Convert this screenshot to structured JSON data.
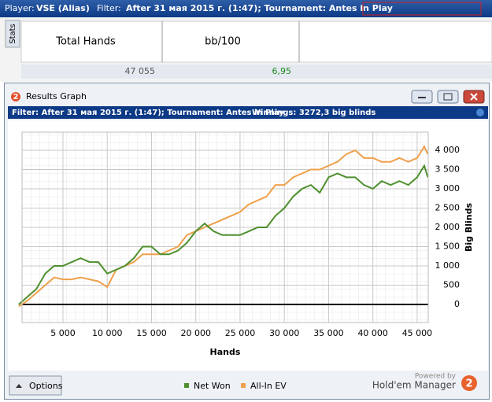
{
  "header": {
    "player_label": "Player:",
    "player": "VSE (Alias)",
    "filter_label": "Filter:",
    "filter": "After 31 мая 2015 г. (1:47); Tournament: Antes in Play"
  },
  "stats": {
    "tab": "Stats",
    "columns": [
      "Total Hands",
      "bb/100"
    ],
    "row": [
      "47 055",
      "6,95"
    ]
  },
  "window": {
    "title": "Results Graph",
    "filter": "Filter: After 31 мая 2015 г. (1:47); Tournament: Antes in Play",
    "winnings": "Winnings: 3272,3 big blinds",
    "options": "Options",
    "powered_by": "Powered by",
    "brand": "Hold'em Manager",
    "logo": "2"
  },
  "chart_data": {
    "type": "line",
    "xlabel": "Hands",
    "ylabel": "Big Blinds",
    "x": [
      0,
      1000,
      2000,
      3000,
      4000,
      5000,
      6000,
      7000,
      8000,
      9000,
      10000,
      11000,
      12000,
      13000,
      14000,
      15000,
      16000,
      17000,
      18000,
      19000,
      20000,
      21000,
      22000,
      23000,
      24000,
      25000,
      26000,
      27000,
      28000,
      29000,
      30000,
      31000,
      32000,
      33000,
      34000,
      35000,
      36000,
      37000,
      38000,
      39000,
      40000,
      41000,
      42000,
      43000,
      44000,
      45000,
      45800,
      46200
    ],
    "series": [
      {
        "name": "Net Won",
        "color": "#4e8f2c",
        "values": [
          0,
          200,
          400,
          800,
          1000,
          1000,
          1100,
          1200,
          1100,
          1100,
          800,
          900,
          1000,
          1200,
          1500,
          1500,
          1300,
          1300,
          1400,
          1600,
          1900,
          2100,
          1900,
          1800,
          1800,
          1800,
          1900,
          2000,
          2000,
          2300,
          2500,
          2800,
          3000,
          3100,
          2900,
          3300,
          3400,
          3300,
          3300,
          3100,
          3000,
          3200,
          3100,
          3200,
          3100,
          3300,
          3600,
          3300
        ]
      },
      {
        "name": "All-In EV",
        "color": "#f0a04b",
        "values": [
          -50,
          100,
          300,
          500,
          700,
          650,
          650,
          700,
          650,
          600,
          450,
          900,
          1000,
          1100,
          1300,
          1300,
          1300,
          1400,
          1500,
          1800,
          1900,
          2000,
          2100,
          2200,
          2300,
          2400,
          2600,
          2700,
          2800,
          3100,
          3100,
          3300,
          3400,
          3500,
          3500,
          3600,
          3700,
          3900,
          4000,
          3800,
          3800,
          3700,
          3700,
          3800,
          3700,
          3800,
          4100,
          3900
        ]
      }
    ],
    "xlim": [
      380,
      46250
    ],
    "ylim": [
      -470,
      4470
    ],
    "xticks": [
      {
        "value": 5000,
        "label": "5 000"
      },
      {
        "value": 10000,
        "label": "10 000"
      },
      {
        "value": 15000,
        "label": "15 000"
      },
      {
        "value": 20000,
        "label": "20 000"
      },
      {
        "value": 25000,
        "label": "25 000"
      },
      {
        "value": 30000,
        "label": "30 000"
      },
      {
        "value": 35000,
        "label": "35 000"
      },
      {
        "value": 40000,
        "label": "40 000"
      },
      {
        "value": 45000,
        "label": "45 000"
      }
    ],
    "yticks": [
      0,
      500,
      {
        "value": 1000,
        "label": "1 000"
      },
      {
        "value": 1500,
        "label": "1 500"
      },
      {
        "value": 2000,
        "label": "2 000"
      },
      {
        "value": 2500,
        "label": "2 500"
      },
      {
        "value": 3000,
        "label": "3 000"
      },
      {
        "value": 3500,
        "label": "3 500"
      },
      {
        "value": 4000,
        "label": "4 000"
      }
    ],
    "grid": true
  }
}
